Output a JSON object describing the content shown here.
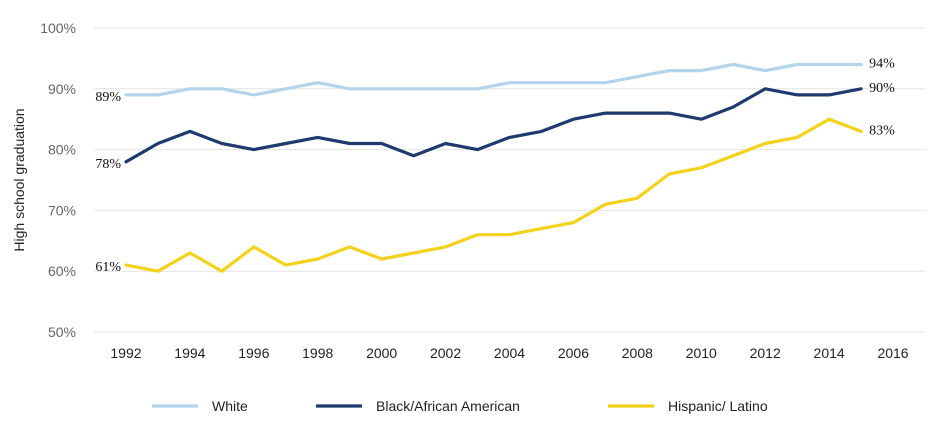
{
  "chart_data": {
    "type": "line",
    "title": "",
    "xlabel": "",
    "ylabel": "High school graduation",
    "x": [
      1992,
      1993,
      1994,
      1995,
      1996,
      1997,
      1998,
      1999,
      2000,
      2001,
      2002,
      2003,
      2004,
      2005,
      2006,
      2007,
      2008,
      2009,
      2010,
      2011,
      2012,
      2013,
      2014,
      2015
    ],
    "xlim": [
      1991,
      2017
    ],
    "ylim": [
      50,
      100
    ],
    "x_ticks": [
      "1992",
      "1994",
      "1996",
      "1998",
      "2000",
      "2002",
      "2004",
      "2006",
      "2008",
      "2010",
      "2012",
      "2014",
      "2016"
    ],
    "y_ticks": [
      "50%",
      "60%",
      "70%",
      "80%",
      "90%",
      "100%"
    ],
    "grid": "horizontal",
    "legend_position": "bottom",
    "series": [
      {
        "name": "White",
        "color": "#b3d4ea",
        "values": [
          89,
          89,
          90,
          90,
          89,
          90,
          91,
          90,
          90,
          90,
          90,
          90,
          91,
          91,
          91,
          91,
          92,
          93,
          93,
          94,
          93,
          94,
          94,
          94
        ],
        "start_label": "89%",
        "end_label": "94%"
      },
      {
        "name": "Black/African American",
        "color": "#1f3a6d",
        "values": [
          78,
          81,
          83,
          81,
          80,
          81,
          82,
          81,
          81,
          79,
          81,
          80,
          82,
          83,
          85,
          86,
          86,
          86,
          85,
          87,
          90,
          89,
          89,
          90
        ],
        "start_label": "78%",
        "end_label": "90%"
      },
      {
        "name": "Hispanic/ Latino",
        "color": "#f2d21b",
        "values": [
          61,
          60,
          63,
          60,
          64,
          61,
          62,
          64,
          62,
          63,
          64,
          66,
          66,
          67,
          68,
          71,
          72,
          76,
          77,
          79,
          81,
          82,
          85,
          83
        ],
        "start_label": "61%",
        "end_label": "83%"
      }
    ]
  }
}
